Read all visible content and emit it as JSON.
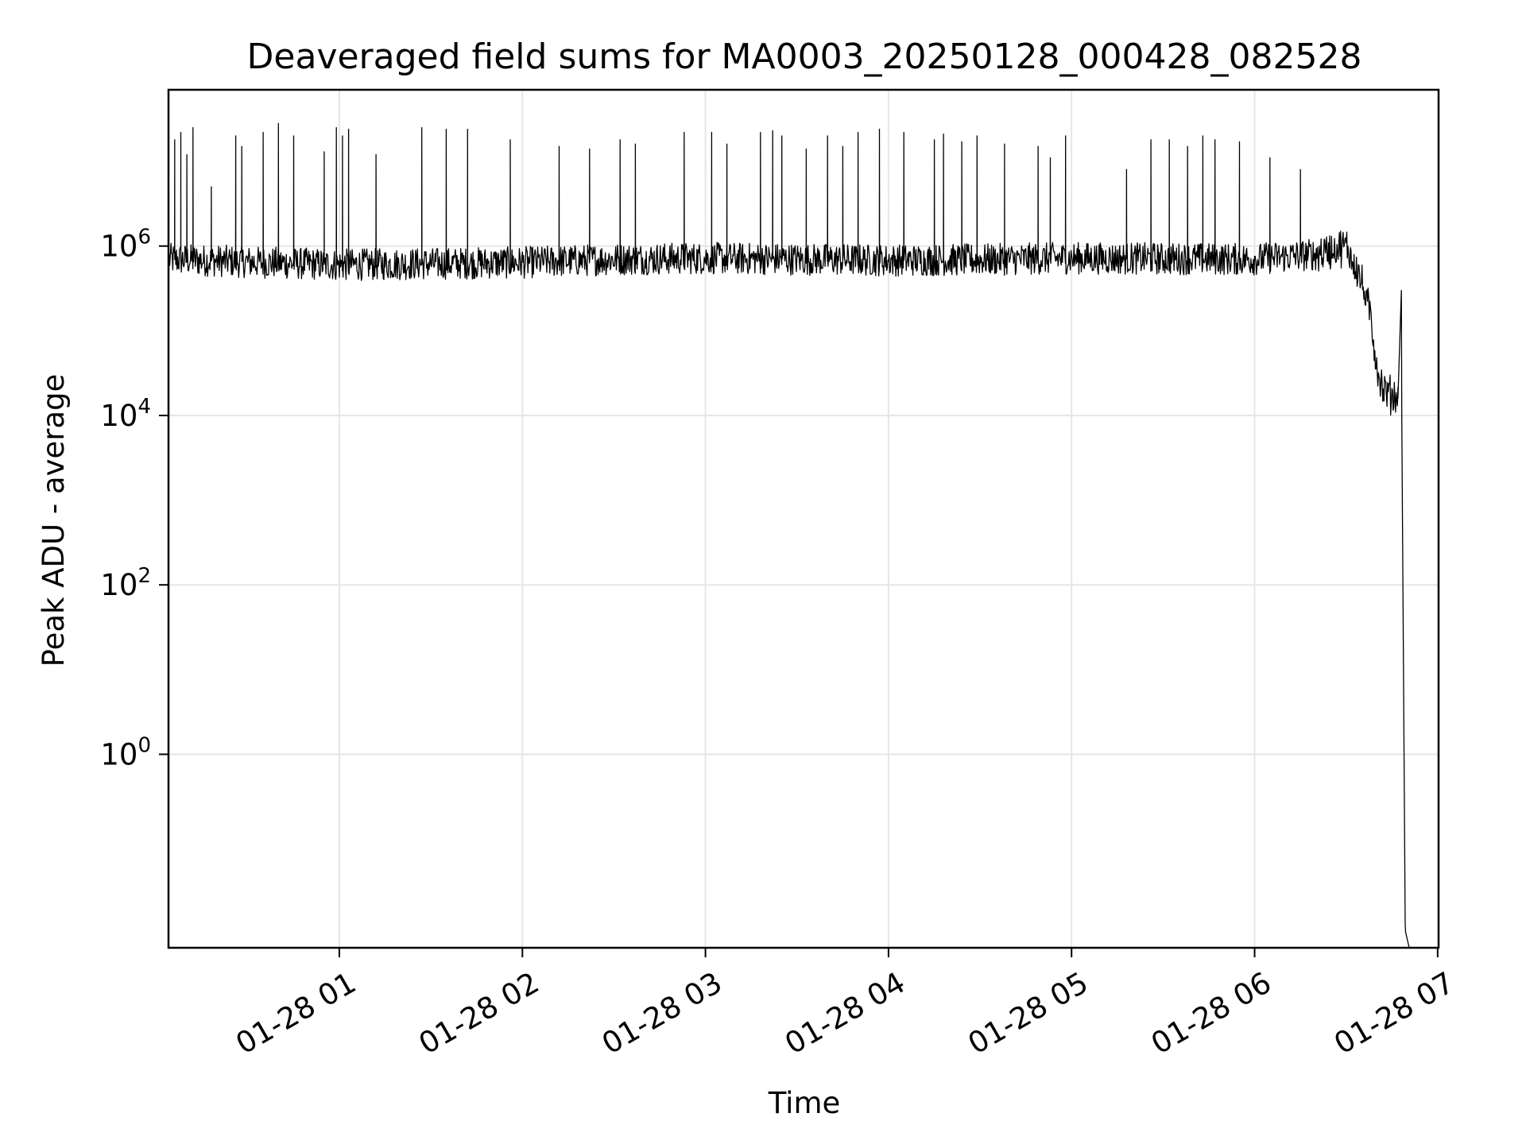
{
  "chart_data": {
    "type": "line",
    "title": "Deaveraged field sums for MA0003_20250128_000428_082528",
    "xlabel": "Time",
    "ylabel": "Peak ADU - average",
    "xaxis": {
      "type": "time",
      "range": [
        "00:04",
        "07:00"
      ],
      "ticks": [
        {
          "t": "01:00",
          "label": "01-28 01"
        },
        {
          "t": "02:00",
          "label": "01-28 02"
        },
        {
          "t": "03:00",
          "label": "01-28 03"
        },
        {
          "t": "04:00",
          "label": "01-28 04"
        },
        {
          "t": "05:00",
          "label": "01-28 05"
        },
        {
          "t": "06:00",
          "label": "01-28 06"
        },
        {
          "t": "07:00",
          "label": "01-28 07"
        }
      ]
    },
    "yaxis": {
      "scale": "log",
      "range": [
        0.0052,
        70000000
      ],
      "ticks": [
        {
          "value": 1,
          "base": "10",
          "exp": "0"
        },
        {
          "value": 100,
          "base": "10",
          "exp": "2"
        },
        {
          "value": 10000,
          "base": "10",
          "exp": "4"
        },
        {
          "value": 1000000,
          "base": "10",
          "exp": "6"
        }
      ]
    },
    "grid": true,
    "legend": "none",
    "line_color": "#000000",
    "grid_color": "#e6e6e6",
    "series": [
      {
        "note": "approximate envelope of the dense noisy trace; baseline with frequent spikes",
        "baseline": {
          "x": [
            "00:04",
            "00:30",
            "01:00",
            "01:30",
            "02:00",
            "02:30",
            "03:00",
            "03:30",
            "04:00",
            "04:30",
            "05:00",
            "05:30",
            "06:00",
            "06:20",
            "06:30",
            "06:34",
            "06:38",
            "06:40",
            "06:42",
            "06:44",
            "06:46",
            "06:47"
          ],
          "y": [
            700000,
            650000,
            600000,
            620000,
            640000,
            700000,
            720000,
            700000,
            680000,
            690000,
            720000,
            710000,
            700000,
            800000,
            1000000,
            500000,
            150000,
            40000,
            20000,
            18000,
            17000,
            16000
          ]
        },
        "spikes": {
          "x": [
            "00:06",
            "00:08",
            "00:10",
            "00:12",
            "00:18",
            "00:26",
            "00:28",
            "00:35",
            "00:40",
            "00:45",
            "00:55",
            "00:59",
            "01:01",
            "01:03",
            "01:12",
            "01:27",
            "01:35",
            "01:42",
            "01:56",
            "02:12",
            "02:22",
            "02:32",
            "02:37",
            "02:53",
            "03:02",
            "03:07",
            "03:18",
            "03:22",
            "03:25",
            "03:33",
            "03:40",
            "03:45",
            "03:50",
            "03:57",
            "04:05",
            "04:15",
            "04:18",
            "04:24",
            "04:29",
            "04:38",
            "04:49",
            "04:53",
            "04:58",
            "05:18",
            "05:26",
            "05:32",
            "05:38",
            "05:43",
            "05:47",
            "05:55",
            "06:05",
            "06:15"
          ],
          "y": [
            18000000,
            22000000,
            12000000,
            25000000,
            5000000,
            20000000,
            15000000,
            22000000,
            28000000,
            20000000,
            13000000,
            25000000,
            20000000,
            24000000,
            12000000,
            25000000,
            24000000,
            24000000,
            18000000,
            15000000,
            14000000,
            18000000,
            16000000,
            22000000,
            22000000,
            16000000,
            22000000,
            23000000,
            20000000,
            14000000,
            20000000,
            15000000,
            22000000,
            24000000,
            22000000,
            18000000,
            21000000,
            17000000,
            20000000,
            16000000,
            15000000,
            11000000,
            20000000,
            8000000,
            18000000,
            18000000,
            15000000,
            20000000,
            18000000,
            17000000,
            11000000,
            8000000
          ]
        },
        "end": {
          "x": [
            "06:47",
            "06:48",
            "06:48",
            "06:49",
            "06:49",
            "06:50"
          ],
          "y": [
            16000,
            300000,
            10000,
            0.01,
            0.008,
            0.0052
          ]
        }
      }
    ]
  }
}
